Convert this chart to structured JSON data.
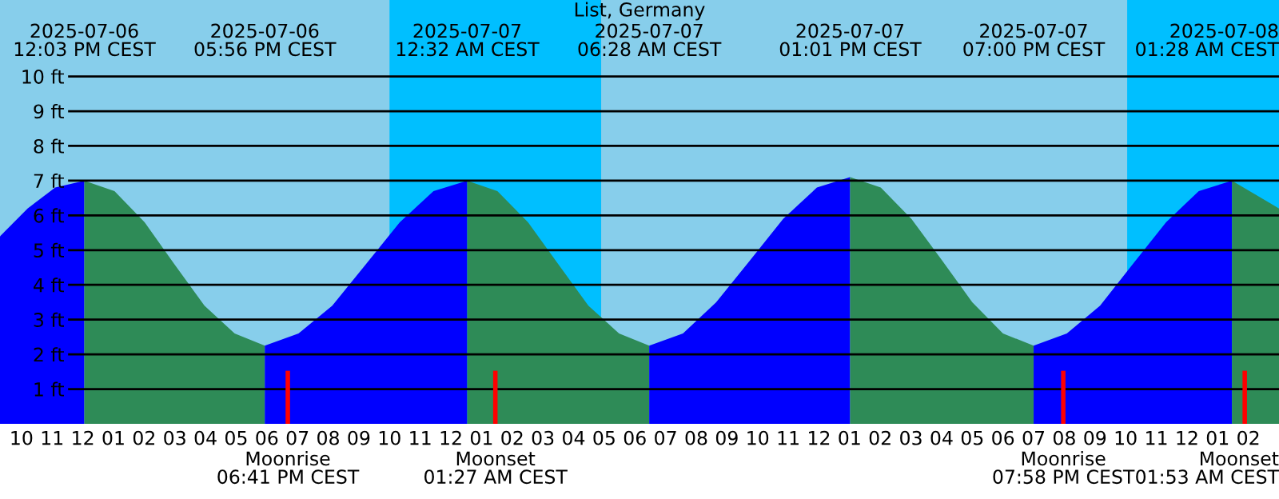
{
  "chart_data": {
    "type": "area",
    "title": "List, Germany",
    "series": [
      {
        "color": "#0000ff",
        "x": [
          "2025-07-06T09:18",
          "2025-07-06T10:12",
          "2025-07-06T11:06",
          "2025-07-06T12:03"
        ],
        "values": [
          5.4,
          6.2,
          6.8,
          7.0
        ]
      },
      {
        "color": "#2e8b57",
        "x": [
          "2025-07-06T12:03",
          "2025-07-06T13:02",
          "2025-07-06T14:01",
          "2025-07-06T14:59",
          "2025-07-06T15:58",
          "2025-07-06T16:57",
          "2025-07-06T17:56"
        ],
        "values": [
          7.0,
          6.7,
          5.8,
          4.6,
          3.4,
          2.6,
          2.25
        ]
      },
      {
        "color": "#0000ff",
        "x": [
          "2025-07-06T17:56",
          "2025-07-06T19:02",
          "2025-07-06T20:08",
          "2025-07-06T21:14",
          "2025-07-06T22:20",
          "2025-07-06T23:26",
          "2025-07-07T00:32"
        ],
        "values": [
          2.25,
          2.6,
          3.4,
          4.6,
          5.8,
          6.7,
          7.0
        ]
      },
      {
        "color": "#2e8b57",
        "x": [
          "2025-07-07T00:32",
          "2025-07-07T01:31",
          "2025-07-07T02:31",
          "2025-07-07T03:30",
          "2025-07-07T04:29",
          "2025-07-07T05:29",
          "2025-07-07T06:28"
        ],
        "values": [
          7.0,
          6.7,
          5.8,
          4.6,
          3.4,
          2.6,
          2.25
        ]
      },
      {
        "color": "#0000ff",
        "x": [
          "2025-07-07T06:28",
          "2025-07-07T07:34",
          "2025-07-07T08:39",
          "2025-07-07T09:45",
          "2025-07-07T10:50",
          "2025-07-07T11:56",
          "2025-07-07T13:01"
        ],
        "values": [
          2.25,
          2.6,
          3.5,
          4.7,
          5.9,
          6.8,
          7.1
        ]
      },
      {
        "color": "#2e8b57",
        "x": [
          "2025-07-07T13:01",
          "2025-07-07T14:01",
          "2025-07-07T15:01",
          "2025-07-07T16:01",
          "2025-07-07T17:00",
          "2025-07-07T18:00",
          "2025-07-07T19:00"
        ],
        "values": [
          7.1,
          6.8,
          5.9,
          4.7,
          3.5,
          2.6,
          2.25
        ]
      },
      {
        "color": "#0000ff",
        "x": [
          "2025-07-07T19:00",
          "2025-07-07T20:05",
          "2025-07-07T21:10",
          "2025-07-07T22:14",
          "2025-07-07T23:19",
          "2025-07-08T00:23",
          "2025-07-08T01:28"
        ],
        "values": [
          2.25,
          2.6,
          3.4,
          4.6,
          5.8,
          6.7,
          7.0
        ]
      },
      {
        "color": "#2e8b57",
        "x": [
          "2025-07-08T01:28",
          "2025-07-08T03:00"
        ],
        "values": [
          7.0,
          6.2
        ]
      }
    ],
    "annotations": [
      "2025-07-06\n12:03 PM CEST",
      "2025-07-06\n05:56 PM CEST",
      "2025-07-07\n12:32 AM CEST",
      "2025-07-07\n06:28 AM CEST",
      "2025-07-07\n01:01 PM CEST",
      "2025-07-07\n07:00 PM CEST",
      "2025-07-08\n01:28 AM CEST"
    ],
    "ref_lines": [
      {
        "axis": "x",
        "value": "2025-07-06T18:41",
        "label": "Moonrise\n06:41 PM CEST",
        "color": "#ff0000"
      },
      {
        "axis": "x",
        "value": "2025-07-07T01:27",
        "label": "Moonset\n01:27 AM CEST",
        "color": "#ff0000"
      },
      {
        "axis": "x",
        "value": "2025-07-07T19:58",
        "label": "Moonrise\n07:58 PM CEST",
        "color": "#ff0000"
      },
      {
        "axis": "x",
        "value": "2025-07-08T01:53",
        "label": "Moonset\n01:53 AM CEST",
        "color": "#ff0000"
      }
    ],
    "bands": [
      {
        "axis": "x",
        "from": "2025-07-06T22:00",
        "to": "2025-07-07T04:54",
        "color": "#00bfff"
      },
      {
        "axis": "x",
        "from": "2025-07-07T22:03",
        "to": "2025-07-08T03:00",
        "color": "#00bfff"
      }
    ],
    "xlim": [
      "2025-07-06T09:18",
      "2025-07-08T03:00"
    ],
    "ylim": [
      0,
      12.2
    ],
    "xticks": [
      {
        "value": "2025-07-06T10:00",
        "label": "10"
      },
      {
        "value": "2025-07-06T11:00",
        "label": "11"
      },
      {
        "value": "2025-07-06T12:00",
        "label": "12"
      },
      {
        "value": "2025-07-06T13:00",
        "label": "01"
      },
      {
        "value": "2025-07-06T14:00",
        "label": "02"
      },
      {
        "value": "2025-07-06T15:00",
        "label": "03"
      },
      {
        "value": "2025-07-06T16:00",
        "label": "04"
      },
      {
        "value": "2025-07-06T17:00",
        "label": "05"
      },
      {
        "value": "2025-07-06T18:00",
        "label": "06"
      },
      {
        "value": "2025-07-06T19:00",
        "label": "07"
      },
      {
        "value": "2025-07-06T20:00",
        "label": "08"
      },
      {
        "value": "2025-07-06T21:00",
        "label": "09"
      },
      {
        "value": "2025-07-06T22:00",
        "label": "10"
      },
      {
        "value": "2025-07-06T23:00",
        "label": "11"
      },
      {
        "value": "2025-07-07T00:00",
        "label": "12"
      },
      {
        "value": "2025-07-07T01:00",
        "label": "01"
      },
      {
        "value": "2025-07-07T02:00",
        "label": "02"
      },
      {
        "value": "2025-07-07T03:00",
        "label": "03"
      },
      {
        "value": "2025-07-07T04:00",
        "label": "04"
      },
      {
        "value": "2025-07-07T05:00",
        "label": "05"
      },
      {
        "value": "2025-07-07T06:00",
        "label": "06"
      },
      {
        "value": "2025-07-07T07:00",
        "label": "07"
      },
      {
        "value": "2025-07-07T08:00",
        "label": "08"
      },
      {
        "value": "2025-07-07T09:00",
        "label": "09"
      },
      {
        "value": "2025-07-07T10:00",
        "label": "10"
      },
      {
        "value": "2025-07-07T11:00",
        "label": "11"
      },
      {
        "value": "2025-07-07T12:00",
        "label": "12"
      },
      {
        "value": "2025-07-07T13:00",
        "label": "01"
      },
      {
        "value": "2025-07-07T14:00",
        "label": "02"
      },
      {
        "value": "2025-07-07T15:00",
        "label": "03"
      },
      {
        "value": "2025-07-07T16:00",
        "label": "04"
      },
      {
        "value": "2025-07-07T17:00",
        "label": "05"
      },
      {
        "value": "2025-07-07T18:00",
        "label": "06"
      },
      {
        "value": "2025-07-07T19:00",
        "label": "07"
      },
      {
        "value": "2025-07-07T20:00",
        "label": "08"
      },
      {
        "value": "2025-07-07T21:00",
        "label": "09"
      },
      {
        "value": "2025-07-07T22:00",
        "label": "10"
      },
      {
        "value": "2025-07-07T23:00",
        "label": "11"
      },
      {
        "value": "2025-07-08T00:00",
        "label": "12"
      },
      {
        "value": "2025-07-08T01:00",
        "label": "01"
      },
      {
        "value": "2025-07-08T02:00",
        "label": "02"
      }
    ],
    "yticks": [
      {
        "value": 1,
        "label": "1 ft"
      },
      {
        "value": 2,
        "label": "2 ft"
      },
      {
        "value": 3,
        "label": "3 ft"
      },
      {
        "value": 4,
        "label": "4 ft"
      },
      {
        "value": 5,
        "label": "5 ft"
      },
      {
        "value": 6,
        "label": "6 ft"
      },
      {
        "value": 7,
        "label": "7 ft"
      },
      {
        "value": 8,
        "label": "8 ft"
      },
      {
        "value": 9,
        "label": "9 ft"
      },
      {
        "value": 10,
        "label": "10 ft"
      }
    ],
    "grid": "y"
  }
}
